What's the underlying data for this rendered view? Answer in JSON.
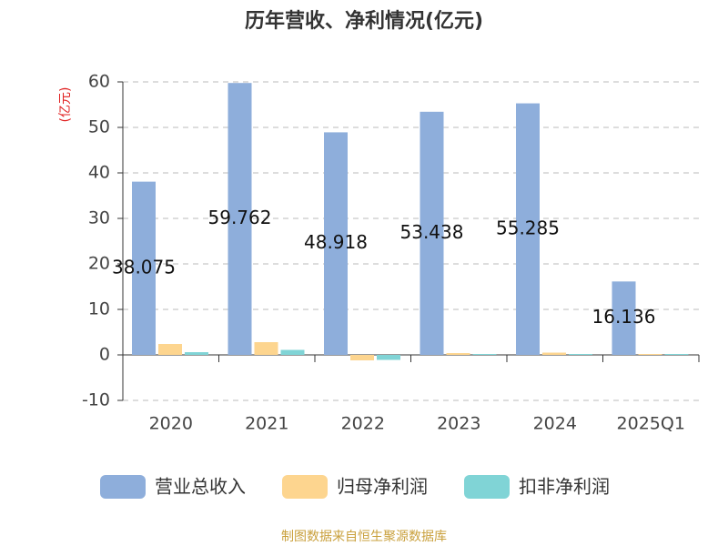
{
  "chart_data": {
    "type": "bar",
    "title": "历年营收、净利情况(亿元)",
    "y_label": "(亿元)",
    "categories": [
      "2020",
      "2021",
      "2022",
      "2023",
      "2024",
      "2025Q1"
    ],
    "series": [
      {
        "name": "营业总收入",
        "color": "#8eaedb",
        "values": [
          38.075,
          59.762,
          48.918,
          53.438,
          55.285,
          16.136
        ],
        "show_labels": true
      },
      {
        "name": "归母净利润",
        "color": "#fdd58f",
        "values": [
          2.4,
          2.8,
          -1.2,
          0.4,
          0.5,
          0.2
        ]
      },
      {
        "name": "扣非净利润",
        "color": "#80d4d6",
        "values": [
          0.6,
          1.1,
          -1.1,
          0.2,
          0.2,
          0.2
        ]
      }
    ],
    "ylim": [
      -10,
      60
    ],
    "yticks": [
      -10,
      0,
      10,
      20,
      30,
      40,
      50,
      60
    ],
    "grid": true,
    "source": "制图数据来自恒生聚源数据库"
  }
}
